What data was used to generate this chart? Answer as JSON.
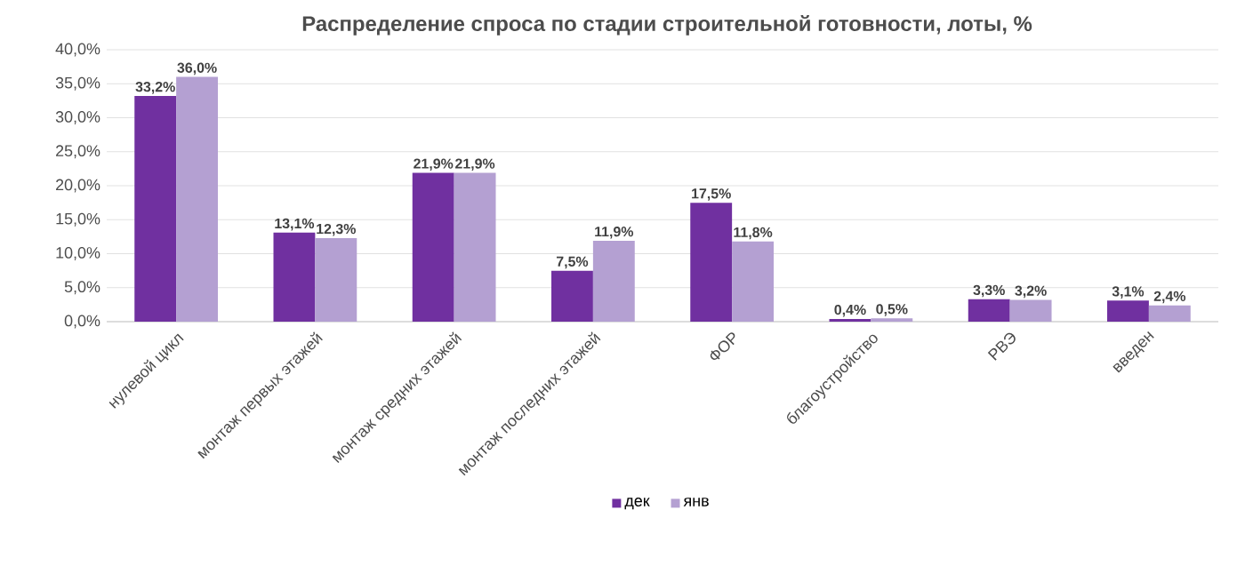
{
  "chart_data": {
    "type": "bar",
    "title": "Распределение спроса по стадии строительной готовности, лоты, %",
    "categories": [
      "нулевой цикл",
      "монтаж первых этажей",
      "монтаж средних этажей",
      "монтаж последних этажей",
      "ФОР",
      "благоустройство",
      "РВЭ",
      "введен"
    ],
    "series": [
      {
        "name": "дек",
        "color": "#7030a0",
        "values": [
          33.2,
          13.1,
          21.9,
          7.5,
          17.5,
          0.4,
          3.3,
          3.1
        ],
        "value_labels": [
          "33,2%",
          "13,1%",
          "21,9%",
          "7,5%",
          "17,5%",
          "0,4%",
          "3,3%",
          "3,1%"
        ]
      },
      {
        "name": "янв",
        "color": "#b4a0d2",
        "values": [
          36.0,
          12.3,
          21.9,
          11.9,
          11.8,
          0.5,
          3.2,
          2.4
        ],
        "value_labels": [
          "36,0%",
          "12,3%",
          "21,9%",
          "11,9%",
          "11,8%",
          "0,5%",
          "3,2%",
          "2,4%"
        ]
      }
    ],
    "ylim": [
      0,
      40
    ],
    "yticks": [
      {
        "value": 0,
        "label": "0,0%"
      },
      {
        "value": 5,
        "label": "5,0%"
      },
      {
        "value": 10,
        "label": "10,0%"
      },
      {
        "value": 15,
        "label": "15,0%"
      },
      {
        "value": 20,
        "label": "20,0%"
      },
      {
        "value": 25,
        "label": "25,0%"
      },
      {
        "value": 30,
        "label": "30,0%"
      },
      {
        "value": 35,
        "label": "35,0%"
      },
      {
        "value": 40,
        "label": "40,0%"
      }
    ],
    "grid": "y",
    "legend": "bottom"
  }
}
